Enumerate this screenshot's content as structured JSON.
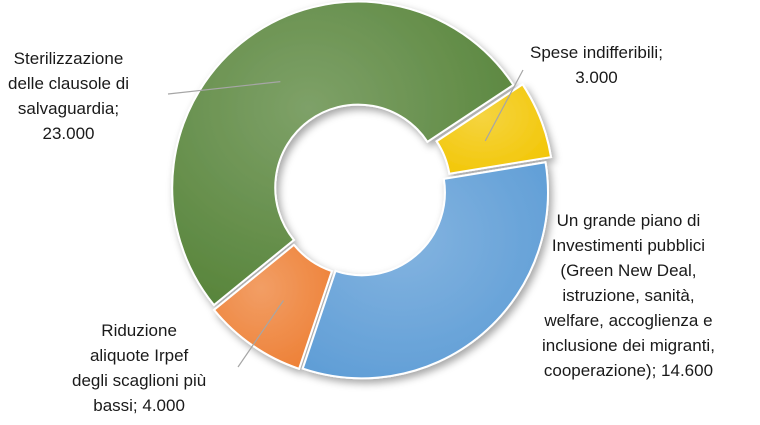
{
  "chart_data": {
    "type": "pie",
    "variant": "doughnut",
    "title": "",
    "slices": [
      {
        "label_lines": [
          "Spese indifferibili;",
          "3.000"
        ],
        "value": 3000,
        "color": "#F2C500"
      },
      {
        "label_lines": [
          "Un grande piano di",
          "Investimenti pubblici",
          "(Green New Deal,",
          "istruzione, sanità,",
          "welfare, accoglienza e",
          "inclusione dei migranti,",
          "cooperazione); 14.600"
        ],
        "value": 14600,
        "color": "#5B9BD5"
      },
      {
        "label_lines": [
          "Riduzione",
          "aliquote Irpef",
          "degli scaglioni più",
          "bassi; 4.000"
        ],
        "value": 4000,
        "color": "#ED7D31"
      },
      {
        "label_lines": [
          "Sterilizzazione",
          "delle clausole di",
          "salvaguardia;",
          "23.000"
        ],
        "value": 23000,
        "color": "#538135"
      }
    ]
  }
}
